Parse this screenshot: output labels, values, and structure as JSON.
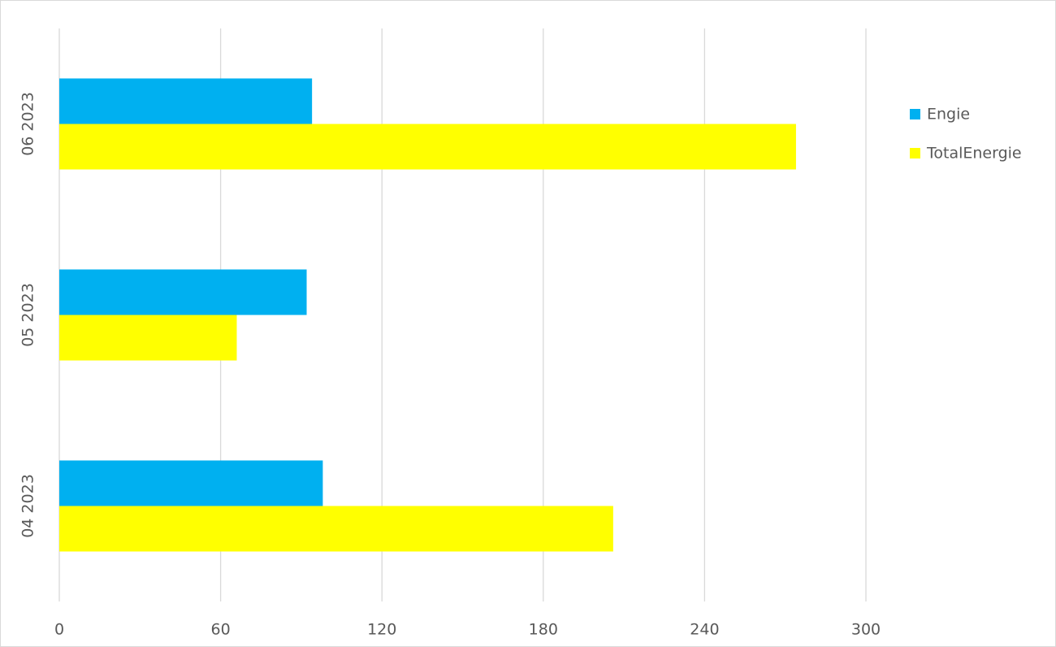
{
  "chart_data": {
    "type": "hbar",
    "categories": [
      "04 2023",
      "05 2023",
      "06 2023"
    ],
    "series": [
      {
        "name": "Engie",
        "color": "#00b0f0",
        "values": [
          98,
          92,
          94
        ]
      },
      {
        "name": "TotalEnergie",
        "color": "#ffff00",
        "values": [
          206,
          66,
          274
        ]
      }
    ],
    "xlim": [
      0,
      300
    ],
    "xticks": [
      0,
      60,
      120,
      180,
      240,
      300
    ],
    "grid": true,
    "legend": "right"
  }
}
